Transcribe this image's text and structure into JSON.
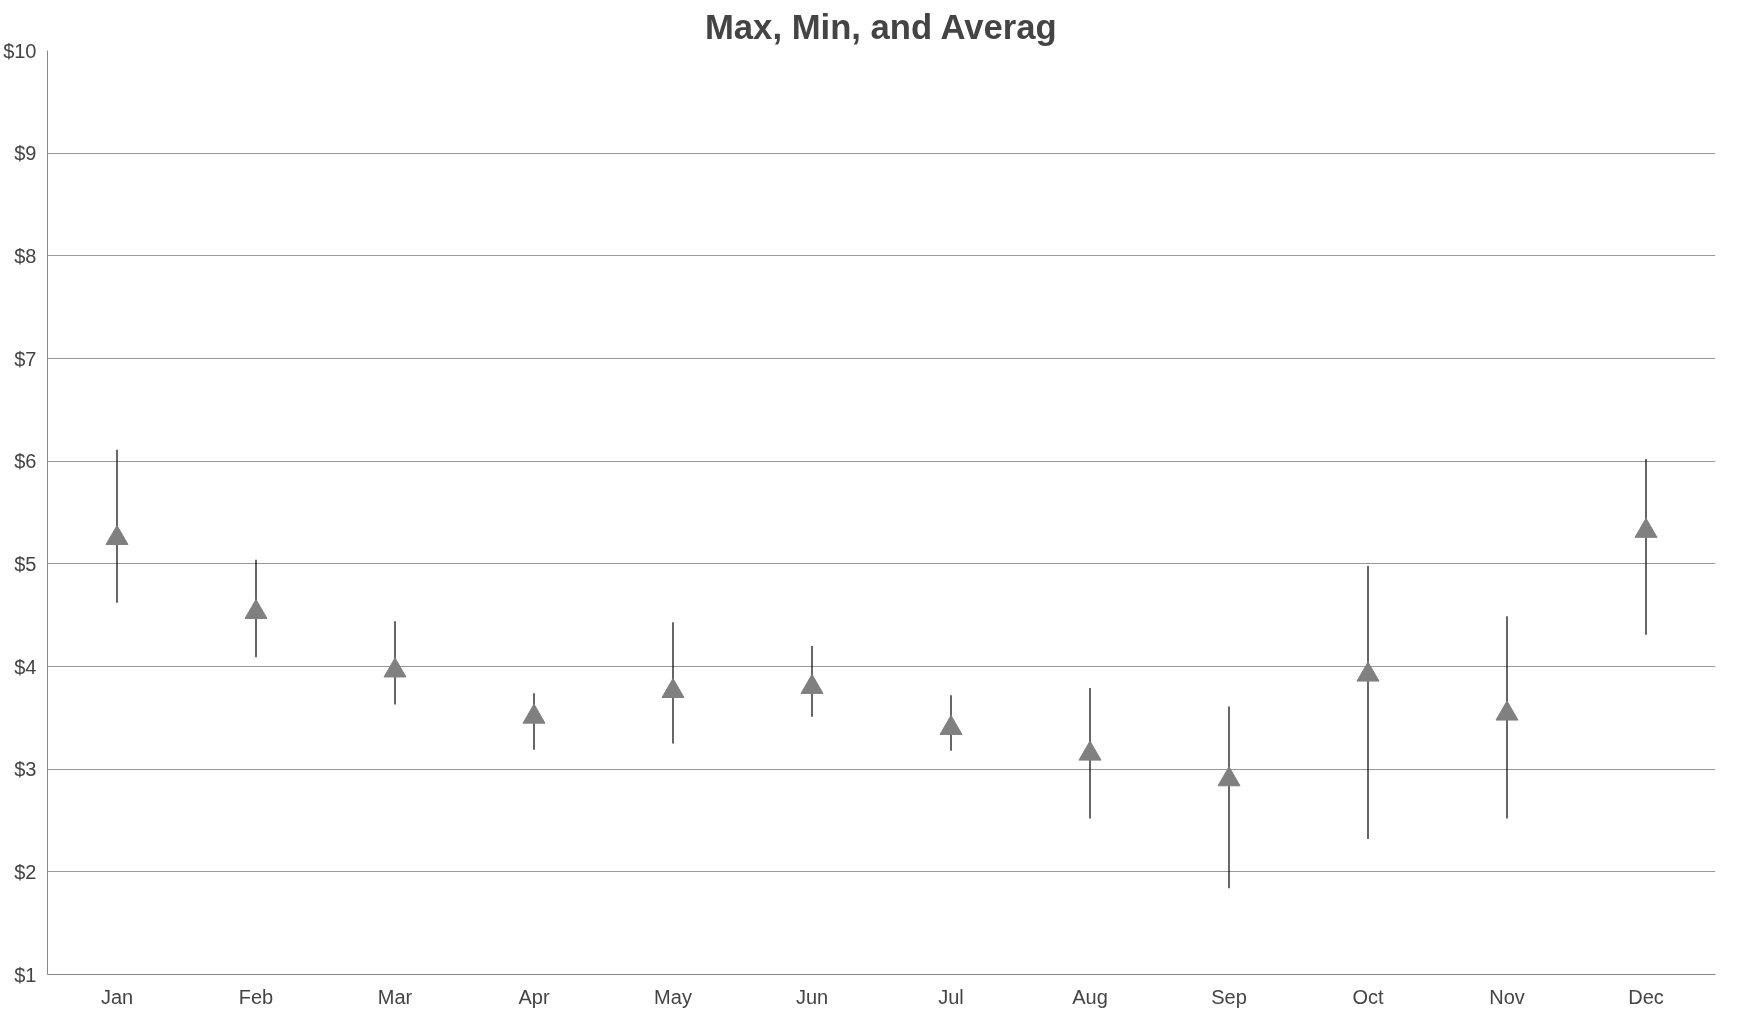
{
  "chart_data": {
    "type": "scatter",
    "title": "Max, Min, and Averag",
    "categories": [
      "Jan",
      "Feb",
      "Mar",
      "Apr",
      "May",
      "Jun",
      "Jul",
      "Aug",
      "Sep",
      "Oct",
      "Nov",
      "Dec"
    ],
    "series": [
      {
        "color": "#808080",
        "values": [
          5.25,
          4.53,
          3.96,
          3.51,
          3.76,
          3.8,
          3.4,
          3.15,
          2.9,
          3.92,
          3.54,
          5.32
        ],
        "errors": [
          [
            4.62,
            6.11
          ],
          [
            4.09,
            5.04
          ],
          [
            3.63,
            4.44
          ],
          [
            3.19,
            3.74
          ],
          [
            3.25,
            4.43
          ],
          [
            3.51,
            4.2
          ],
          [
            3.18,
            3.72
          ],
          [
            2.52,
            3.79
          ],
          [
            1.84,
            3.61
          ],
          [
            2.32,
            4.98
          ],
          [
            2.52,
            4.49
          ],
          [
            4.31,
            6.02
          ]
        ]
      }
    ],
    "ylim": [
      1,
      10
    ],
    "yticks": [
      {
        "value": 1,
        "label": "$1"
      },
      {
        "value": 2,
        "label": "$2"
      },
      {
        "value": 3,
        "label": "$3"
      },
      {
        "value": 4,
        "label": "$4"
      },
      {
        "value": 5,
        "label": "$5"
      },
      {
        "value": 6,
        "label": "$6"
      },
      {
        "value": 7,
        "label": "$7"
      },
      {
        "value": 8,
        "label": "$8"
      },
      {
        "value": 9,
        "label": "$9"
      },
      {
        "value": 10,
        "label": "$10"
      }
    ],
    "grid": "y",
    "marker": "triangle"
  }
}
